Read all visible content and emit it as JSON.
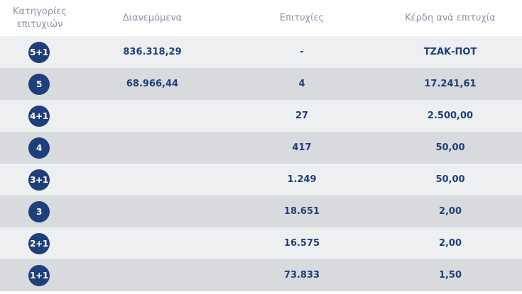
{
  "headers": {
    "category_line1": "Κατηγορίες",
    "category_line2": "επιτυχιών",
    "distributed": "Διανεμόμενα",
    "winners": "Επιτυχίες",
    "prize_per_winner": "Κέρδη ανά επιτυχία"
  },
  "rows": [
    {
      "category": "5+1",
      "distributed": "836.318,29",
      "winners": "-",
      "prize": "ΤΖΑΚ-ΠΟΤ"
    },
    {
      "category": "5",
      "distributed": "68.966,44",
      "winners": "4",
      "prize": "17.241,61"
    },
    {
      "category": "4+1",
      "distributed": "",
      "winners": "27",
      "prize": "2.500,00"
    },
    {
      "category": "4",
      "distributed": "",
      "winners": "417",
      "prize": "50,00"
    },
    {
      "category": "3+1",
      "distributed": "",
      "winners": "1.249",
      "prize": "50,00"
    },
    {
      "category": "3",
      "distributed": "",
      "winners": "18.651",
      "prize": "2,00"
    },
    {
      "category": "2+1",
      "distributed": "",
      "winners": "16.575",
      "prize": "2,00"
    },
    {
      "category": "1+1",
      "distributed": "",
      "winners": "73.833",
      "prize": "1,50"
    }
  ],
  "colors": {
    "badge": "#1f3f7a",
    "row_light": "#eeeff1",
    "row_dark": "#d8dade",
    "header_text": "#8b95a5"
  }
}
